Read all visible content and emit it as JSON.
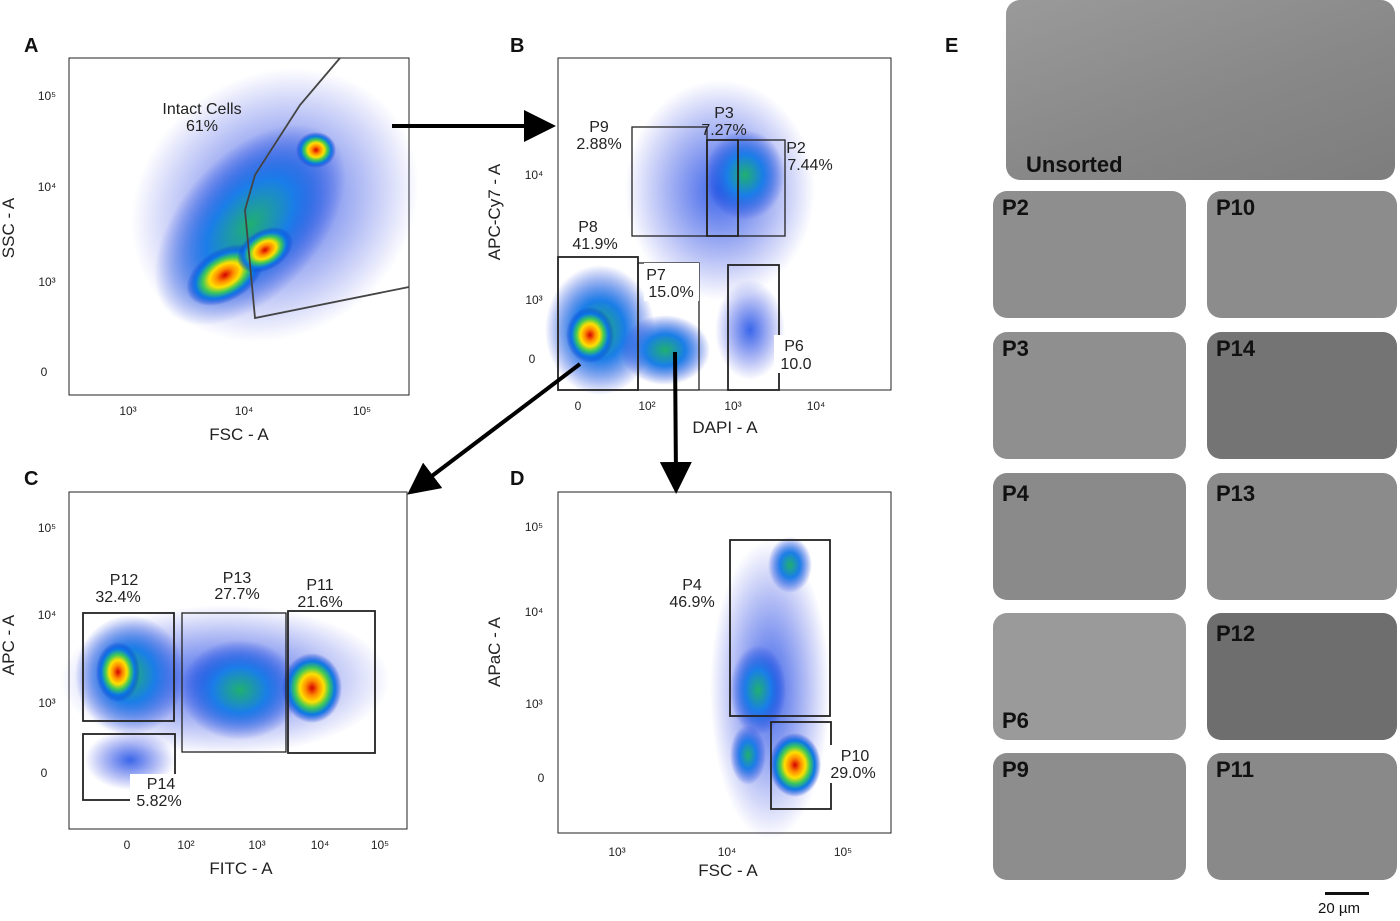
{
  "figure": {
    "panel_letters": [
      "A",
      "B",
      "C",
      "D",
      "E"
    ],
    "plots": [
      {
        "id": "A",
        "xlabel": "FSC - A",
        "ylabel": "SSC - A",
        "xticks": [
          "10³",
          "10⁴",
          "10⁵"
        ],
        "yticks": [
          "10⁵",
          "10⁴",
          "10³",
          "0"
        ],
        "gates": [
          {
            "name": "Intact Cells",
            "pct": "61%"
          }
        ]
      },
      {
        "id": "B",
        "xlabel": "DAPI - A",
        "ylabel": "APC-Cy7 - A",
        "xticks": [
          "0",
          "10²",
          "10³",
          "10⁴"
        ],
        "yticks": [
          "10⁴",
          "10³",
          "0"
        ],
        "gates": [
          {
            "name": "P9",
            "pct": "2.88%"
          },
          {
            "name": "P3",
            "pct": "7.27%"
          },
          {
            "name": "P2",
            "pct": "7.44%"
          },
          {
            "name": "P8",
            "pct": "41.9%"
          },
          {
            "name": "P7",
            "pct": "15.0%"
          },
          {
            "name": "P6",
            "pct": "10.0"
          }
        ]
      },
      {
        "id": "C",
        "xlabel": "FITC - A",
        "ylabel": "APC - A",
        "xticks": [
          "0",
          "10²",
          "10³",
          "10⁴",
          "10⁵"
        ],
        "yticks": [
          "10⁵",
          "10⁴",
          "10³",
          "0"
        ],
        "gates": [
          {
            "name": "P12",
            "pct": "32.4%"
          },
          {
            "name": "P13",
            "pct": "27.7%"
          },
          {
            "name": "P11",
            "pct": "21.6%"
          },
          {
            "name": "P14",
            "pct": "5.82%"
          }
        ]
      },
      {
        "id": "D",
        "xlabel": "FSC - A",
        "ylabel": "APaC - A",
        "xticks": [
          "10³",
          "10⁴",
          "10⁵"
        ],
        "yticks": [
          "10⁵",
          "10⁴",
          "10³",
          "0"
        ],
        "gates": [
          {
            "name": "P4",
            "pct": "46.9%"
          },
          {
            "name": "P10",
            "pct": "29.0%"
          }
        ]
      }
    ],
    "micrographs": [
      "Unsorted",
      "P2",
      "P10",
      "P3",
      "P14",
      "P4",
      "P13",
      "P6",
      "P12",
      "P9",
      "P11"
    ],
    "scale_bar": "20 µm"
  }
}
